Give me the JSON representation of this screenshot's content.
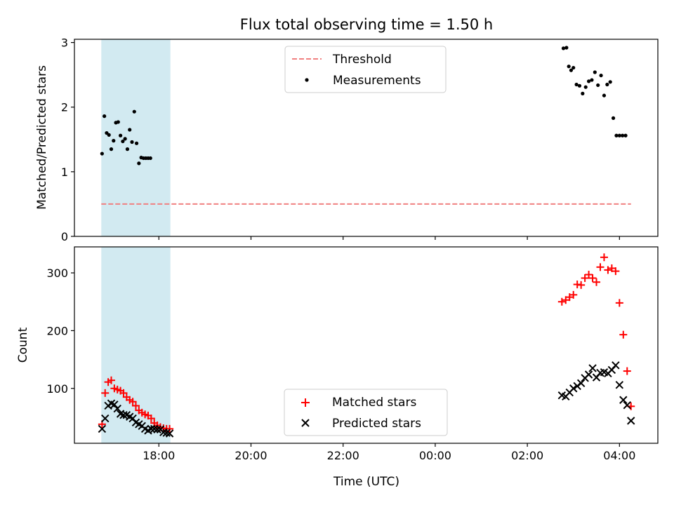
{
  "title": "Flux total observing time = 1.50 h",
  "colors": {
    "threshold": "#f08080",
    "measurement": "#000000",
    "matched": "#ff0000",
    "predicted": "#000000",
    "shade": "#add8e6"
  },
  "chart_data": [
    {
      "type": "scatter",
      "ylabel": "Matched/Predicted stars",
      "xlabel": "",
      "ylim": [
        0,
        3.05
      ],
      "yticks": [
        "0",
        "1",
        "2",
        "3"
      ],
      "yticks_values": [
        0,
        1,
        2,
        3
      ],
      "xlim": [
        "16:10",
        "04:50"
      ],
      "x_unit": "hours after midnight, previous-day times negative",
      "shaded_span": [
        "16:45",
        "18:15"
      ],
      "legend": {
        "placement": "upper-center",
        "entries": [
          "Threshold",
          "Measurements"
        ]
      },
      "series": [
        {
          "name": "Threshold",
          "style": "dashed-line",
          "x": [
            "16:45",
            "04:15"
          ],
          "y": [
            0.5,
            0.5
          ]
        },
        {
          "name": "Measurements",
          "style": "dot",
          "x": [
            "16:46",
            "16:49",
            "16:52",
            "16:55",
            "16:58",
            "17:01",
            "17:04",
            "17:07",
            "17:10",
            "17:13",
            "17:16",
            "17:19",
            "17:22",
            "17:25",
            "17:28",
            "17:31",
            "17:34",
            "17:37",
            "17:40",
            "17:43",
            "17:46",
            "17:49",
            "02:47",
            "02:51",
            "02:54",
            "02:57",
            "03:00",
            "03:04",
            "03:08",
            "03:12",
            "03:16",
            "03:20",
            "03:24",
            "03:28",
            "03:32",
            "03:36",
            "03:40",
            "03:44",
            "03:48",
            "03:52",
            "03:56",
            "04:00",
            "04:04",
            "04:08"
          ],
          "y": [
            1.28,
            1.86,
            1.6,
            1.57,
            1.35,
            1.48,
            1.76,
            1.77,
            1.56,
            1.47,
            1.51,
            1.35,
            1.65,
            1.46,
            1.93,
            1.44,
            1.13,
            1.22,
            1.21,
            1.21,
            1.21,
            1.21,
            2.91,
            2.92,
            2.63,
            2.57,
            2.61,
            2.35,
            2.33,
            2.21,
            2.31,
            2.4,
            2.42,
            2.54,
            2.34,
            2.49,
            2.18,
            2.35,
            2.39,
            1.83,
            1.56,
            1.56,
            1.56,
            1.56
          ]
        }
      ]
    },
    {
      "type": "scatter",
      "ylabel": "Count",
      "xlabel": "Time (UTC)",
      "ylim": [
        5,
        345
      ],
      "yticks": [
        "100",
        "200",
        "300"
      ],
      "yticks_values": [
        100,
        200,
        300
      ],
      "xlim": [
        "16:10",
        "04:50"
      ],
      "xticks": [
        "18:00",
        "20:00",
        "22:00",
        "00:00",
        "02:00",
        "04:00"
      ],
      "shaded_span": [
        "16:45",
        "18:15"
      ],
      "legend": {
        "placement": "lower-center",
        "entries": [
          "Matched stars",
          "Predicted stars"
        ]
      },
      "series": [
        {
          "name": "Matched stars",
          "marker": "plus",
          "x": [
            "16:46",
            "16:50",
            "16:54",
            "16:58",
            "17:02",
            "17:06",
            "17:10",
            "17:14",
            "17:18",
            "17:22",
            "17:26",
            "17:30",
            "17:34",
            "17:38",
            "17:42",
            "17:46",
            "17:50",
            "17:54",
            "17:58",
            "18:02",
            "18:06",
            "18:10",
            "18:14",
            "02:45",
            "02:50",
            "02:55",
            "03:00",
            "03:05",
            "03:10",
            "03:15",
            "03:20",
            "03:25",
            "03:30",
            "03:35",
            "03:40",
            "03:45",
            "03:50",
            "03:55",
            "04:00",
            "04:05",
            "04:10",
            "04:15"
          ],
          "y": [
            38,
            92,
            111,
            114,
            100,
            98,
            96,
            92,
            85,
            80,
            77,
            70,
            62,
            58,
            55,
            53,
            48,
            40,
            36,
            33,
            31,
            30,
            30,
            250,
            253,
            258,
            262,
            280,
            279,
            291,
            297,
            291,
            284,
            310,
            327,
            305,
            308,
            303,
            248,
            193,
            130,
            69
          ]
        },
        {
          "name": "Predicted stars",
          "marker": "x",
          "x": [
            "16:46",
            "16:50",
            "16:54",
            "16:58",
            "17:02",
            "17:06",
            "17:10",
            "17:14",
            "17:18",
            "17:22",
            "17:26",
            "17:30",
            "17:34",
            "17:38",
            "17:42",
            "17:46",
            "17:50",
            "17:54",
            "17:58",
            "18:02",
            "18:06",
            "18:10",
            "18:14",
            "02:45",
            "02:50",
            "02:55",
            "03:00",
            "03:05",
            "03:10",
            "03:15",
            "03:20",
            "03:25",
            "03:30",
            "03:35",
            "03:40",
            "03:45",
            "03:50",
            "03:55",
            "04:00",
            "04:05",
            "04:10",
            "04:15"
          ],
          "y": [
            30,
            48,
            70,
            74,
            72,
            65,
            56,
            54,
            54,
            51,
            48,
            41,
            38,
            35,
            30,
            27,
            30,
            30,
            29,
            29,
            24,
            23,
            22,
            88,
            86,
            93,
            100,
            104,
            109,
            118,
            124,
            135,
            119,
            127,
            128,
            126,
            132,
            140,
            106,
            80,
            71,
            44
          ]
        }
      ]
    }
  ]
}
